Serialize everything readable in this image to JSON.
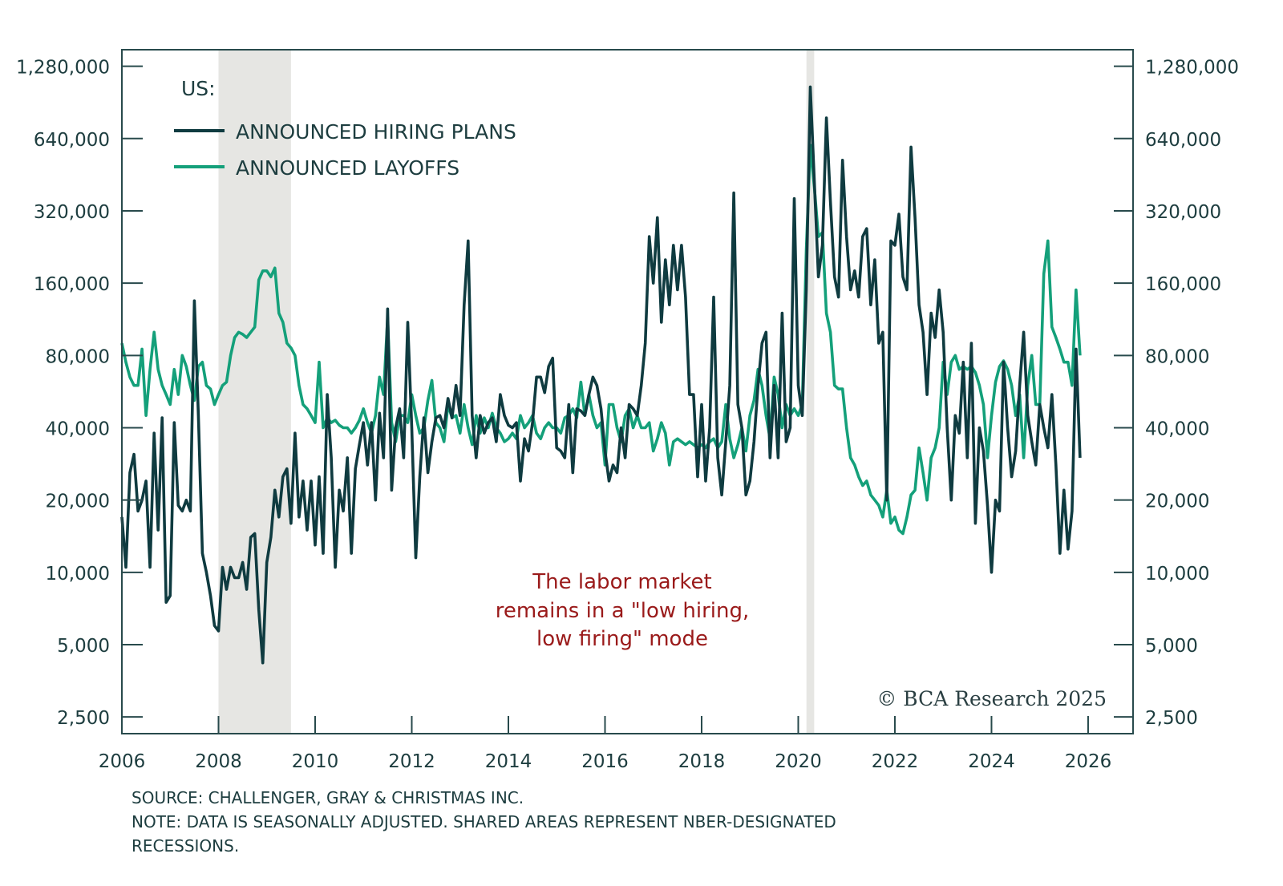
{
  "chart_data": {
    "type": "line",
    "y_scale": "log2",
    "ylim": [
      2130,
      1500000
    ],
    "xlim": [
      2006,
      2026.93
    ],
    "y_ticks": [
      2500,
      5000,
      10000,
      20000,
      40000,
      80000,
      160000,
      320000,
      640000,
      1280000
    ],
    "y_tick_labels": [
      "2,500",
      "5,000",
      "10,000",
      "20,000",
      "40,000",
      "80,000",
      "160,000",
      "320,000",
      "640,000",
      "1,280,000"
    ],
    "x_ticks": [
      2006,
      2008,
      2010,
      2012,
      2014,
      2016,
      2018,
      2020,
      2022,
      2024,
      2026
    ],
    "x_tick_labels": [
      "2006",
      "2008",
      "2010",
      "2012",
      "2014",
      "2016",
      "2018",
      "2020",
      "2022",
      "2024",
      "2026"
    ],
    "grid": false,
    "legend_title": "US:",
    "legend_placement": "top-left",
    "recessions": [
      [
        2008.0,
        2009.5
      ],
      [
        2020.17,
        2020.33
      ]
    ],
    "recession_color": "#e6e6e3",
    "start_month": "2006-01",
    "frequency": "monthly",
    "series": [
      {
        "name": "ANNOUNCED HIRING PLANS",
        "color": "#0f3b40",
        "values": [
          17000,
          10500,
          26000,
          31000,
          18000,
          20000,
          24000,
          10500,
          38000,
          15000,
          44000,
          7500,
          8000,
          42000,
          19000,
          18000,
          20000,
          18000,
          135000,
          45000,
          12000,
          10000,
          8000,
          6000,
          5700,
          10500,
          8500,
          10500,
          9500,
          9500,
          11000,
          8500,
          14000,
          14500,
          7000,
          4200,
          11000,
          14000,
          22000,
          17000,
          25000,
          27000,
          16000,
          38000,
          17000,
          24000,
          15000,
          24000,
          13000,
          25000,
          12000,
          55000,
          30000,
          10500,
          22000,
          18000,
          30000,
          12000,
          27000,
          34000,
          42000,
          28000,
          42000,
          20000,
          46000,
          30000,
          125000,
          22000,
          40000,
          48000,
          30000,
          110000,
          40000,
          11500,
          25000,
          44000,
          26000,
          35000,
          44000,
          45000,
          40000,
          53000,
          44000,
          60000,
          45000,
          130000,
          240000,
          45000,
          30000,
          45000,
          38000,
          42000,
          44000,
          35000,
          55000,
          45000,
          41000,
          40000,
          42000,
          24000,
          36000,
          32000,
          42000,
          65000,
          65000,
          56000,
          72000,
          78000,
          33000,
          32000,
          30000,
          50000,
          26000,
          48000,
          47000,
          45000,
          55000,
          65000,
          60000,
          48000,
          32000,
          24000,
          28000,
          26000,
          40000,
          30000,
          50000,
          48000,
          45000,
          60000,
          90000,
          250000,
          160000,
          300000,
          110000,
          200000,
          130000,
          230000,
          150000,
          230000,
          140000,
          55000,
          55000,
          25000,
          50000,
          24000,
          40000,
          140000,
          30000,
          21000,
          35000,
          60000,
          380000,
          50000,
          40000,
          21000,
          24000,
          35000,
          60000,
          90000,
          100000,
          30000,
          60000,
          30000,
          120000,
          35000,
          40000,
          360000,
          60000,
          45000,
          150000,
          1050000,
          420000,
          170000,
          230000,
          780000,
          350000,
          170000,
          140000,
          520000,
          250000,
          150000,
          180000,
          140000,
          250000,
          270000,
          130000,
          200000,
          90000,
          100000,
          20000,
          240000,
          230000,
          310000,
          170000,
          150000,
          590000,
          300000,
          130000,
          100000,
          55000,
          120000,
          95000,
          150000,
          100000,
          40000,
          20000,
          45000,
          38000,
          75000,
          30000,
          90000,
          16000,
          40000,
          32000,
          19000,
          10000,
          20000,
          18000,
          75000,
          40000,
          25000,
          32000,
          60000,
          100000,
          45000,
          35000,
          28000,
          50000,
          40000,
          33000,
          55000,
          28000,
          12000,
          22000,
          12500,
          18000,
          85000,
          30000
        ]
      },
      {
        "name": "ANNOUNCED LAYOFFS",
        "color": "#14a07a",
        "values": [
          90000,
          75000,
          65000,
          60000,
          60000,
          85000,
          45000,
          70000,
          100000,
          70000,
          60000,
          55000,
          50000,
          70000,
          55000,
          80000,
          72000,
          60000,
          52000,
          72000,
          75000,
          60000,
          58000,
          50000,
          55000,
          60000,
          62000,
          80000,
          95000,
          100000,
          98000,
          95000,
          100000,
          105000,
          165000,
          180000,
          180000,
          170000,
          185000,
          120000,
          110000,
          90000,
          86000,
          80000,
          60000,
          50000,
          48000,
          45000,
          42000,
          75000,
          40000,
          44000,
          42000,
          43000,
          41000,
          40000,
          40000,
          38000,
          40000,
          43000,
          48000,
          42000,
          38000,
          45000,
          65000,
          55000,
          115000,
          42000,
          35000,
          45000,
          45000,
          42000,
          55000,
          45000,
          38000,
          40000,
          52000,
          63000,
          42000,
          40000,
          35000,
          50000,
          44000,
          45000,
          38000,
          50000,
          40000,
          34000,
          45000,
          38000,
          44000,
          40000,
          46000,
          40000,
          38000,
          35000,
          36000,
          38000,
          36000,
          45000,
          40000,
          42000,
          45000,
          38000,
          36000,
          40000,
          42000,
          40000,
          40000,
          38000,
          44000,
          45000,
          48000,
          44000,
          62000,
          45000,
          55000,
          45000,
          40000,
          42000,
          28000,
          50000,
          50000,
          40000,
          35000,
          45000,
          48000,
          40000,
          45000,
          40000,
          40000,
          42000,
          32000,
          36000,
          42000,
          38000,
          28000,
          35000,
          36000,
          35000,
          34000,
          35000,
          34000,
          33000,
          34000,
          33000,
          35000,
          36000,
          33000,
          35000,
          50000,
          36000,
          30000,
          34000,
          40000,
          32000,
          45000,
          52000,
          70000,
          60000,
          45000,
          36000,
          65000,
          55000,
          40000,
          50000,
          45000,
          48000,
          45000,
          50000,
          220000,
          600000,
          400000,
          250000,
          260000,
          120000,
          100000,
          60000,
          58000,
          58000,
          40000,
          30000,
          28000,
          25000,
          23000,
          24000,
          21000,
          20000,
          19000,
          17000,
          22000,
          16000,
          17000,
          15000,
          14500,
          17000,
          21000,
          22000,
          33000,
          26000,
          20000,
          30000,
          33000,
          40000,
          75000,
          55000,
          75000,
          80000,
          70000,
          72000,
          70000,
          72000,
          68000,
          60000,
          50000,
          30000,
          45000,
          62000,
          72000,
          76000,
          70000,
          60000,
          45000,
          55000,
          30000,
          60000,
          80000,
          50000,
          50000,
          175000,
          240000,
          105000,
          95000,
          85000,
          75000,
          75000,
          60000,
          150000,
          80000
        ]
      }
    ],
    "annotation": [
      "The labor market",
      "remains in a \"low hiring,",
      "low firing\" mode"
    ],
    "annotation_color": "#9a1a1a",
    "copyright": "© BCA Research 2025"
  },
  "footer": {
    "source": "SOURCE: CHALLENGER, GRAY & CHRISTMAS INC.",
    "note_line1": "NOTE: DATA IS SEASONALLY ADJUSTED. SHARED AREAS REPRESENT NBER-DESIGNATED",
    "note_line2": "RECESSIONS."
  }
}
